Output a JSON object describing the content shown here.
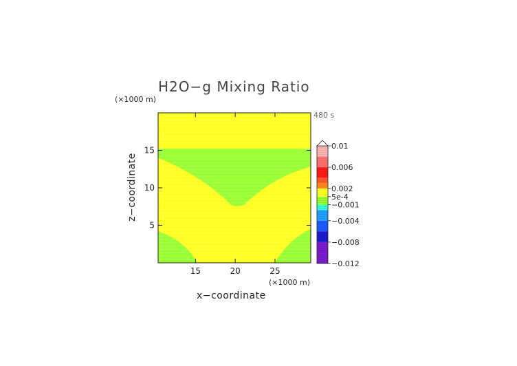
{
  "chart_data": {
    "type": "heatmap",
    "title": "H2O−g Mixing Ratio",
    "time_label": "480 s",
    "xlabel": "x−coordinate",
    "ylabel": "z−coordinate",
    "x_unit": "(×1000 m)",
    "z_unit": "(×1000 m)",
    "xlim": [
      10.3,
      29.5
    ],
    "ylim": [
      0,
      20
    ],
    "x_ticks": [
      15,
      20,
      25
    ],
    "y_ticks": [
      5,
      10,
      15
    ],
    "fields": {
      "background": {
        "value_range": "5e-4 to 0.002",
        "color": "#ffff22"
      },
      "regions": [
        {
          "name": "upper trough",
          "value_range": "-0.001 to 5e-4",
          "color": "#99ff33",
          "z_top": 15.2,
          "z_bottom_at_x20": 7.5
        },
        {
          "name": "lower-left corner",
          "value_range": "-0.001 to 5e-4",
          "color": "#99ff33",
          "z_top_at_x10.3": 4.2,
          "x_end_at_z0": 15.2
        },
        {
          "name": "lower-right corner",
          "value_range": "-0.001 to 5e-4",
          "color": "#99ff33",
          "z_top_at_x29.5": 4.5,
          "x_start_at_z0": 25.0
        }
      ]
    },
    "colorbar": {
      "labels": [
        "0.01",
        "0.006",
        "0.002",
        "5e-4",
        "−0.001",
        "−0.004",
        "−0.008",
        "−0.012"
      ],
      "label_values": [
        0.01,
        0.006,
        0.002,
        0.0005,
        -0.001,
        -0.004,
        -0.008,
        -0.012
      ],
      "bands": [
        {
          "lo": 0.008,
          "hi": 0.01,
          "color": "#ffb4b4"
        },
        {
          "lo": 0.006,
          "hi": 0.008,
          "color": "#ff7070"
        },
        {
          "lo": 0.004,
          "hi": 0.006,
          "color": "#ff1a1a"
        },
        {
          "lo": 0.003,
          "hi": 0.004,
          "color": "#ff5a2a"
        },
        {
          "lo": 0.002,
          "hi": 0.003,
          "color": "#ff8c1a"
        },
        {
          "lo": 0.0005,
          "hi": 0.002,
          "color": "#ffff22"
        },
        {
          "lo": -0.001,
          "hi": 0.0005,
          "color": "#99ff33"
        },
        {
          "lo": -0.002,
          "hi": -0.001,
          "color": "#33ffcc"
        },
        {
          "lo": -0.004,
          "hi": -0.002,
          "color": "#1ea0ff"
        },
        {
          "lo": -0.006,
          "hi": -0.004,
          "color": "#1a5aff"
        },
        {
          "lo": -0.008,
          "hi": -0.006,
          "color": "#1a1acc"
        },
        {
          "lo": -0.012,
          "hi": -0.008,
          "color": "#7a1acc"
        }
      ],
      "overflow_triangle": true
    }
  }
}
